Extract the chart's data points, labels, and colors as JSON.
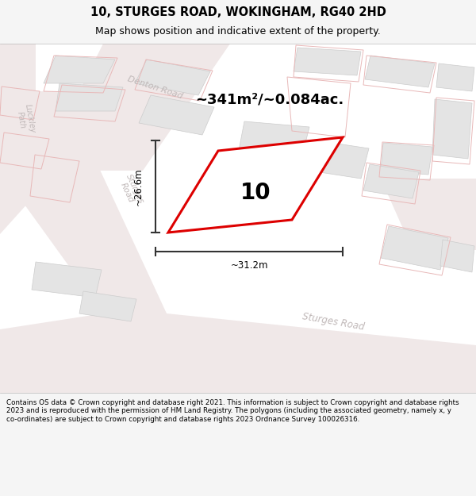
{
  "title": "10, STURGES ROAD, WOKINGHAM, RG40 2HD",
  "subtitle": "Map shows position and indicative extent of the property.",
  "area_text": "~341m²/~0.084ac.",
  "label_10": "10",
  "dim_width": "~31.2m",
  "dim_height": "~26.6m",
  "footer_text": "Contains OS data © Crown copyright and database right 2021. This information is subject to Crown copyright and database rights 2023 and is reproduced with the permission of HM Land Registry. The polygons (including the associated geometry, namely x, y co-ordinates) are subject to Crown copyright and database rights 2023 Ordnance Survey 100026316.",
  "bg_color": "#f5f5f5",
  "map_bg": "#ffffff",
  "title_fontsize": 10.5,
  "subtitle_fontsize": 9,
  "road_color": "#f0e8e8",
  "building_fill": "#e4e4e4",
  "building_edge": "#cccccc",
  "plot_fill": "#ffffff",
  "plot_edge": "#dd0000",
  "dim_color": "#333333",
  "street_label_color": "#c0b8b8"
}
